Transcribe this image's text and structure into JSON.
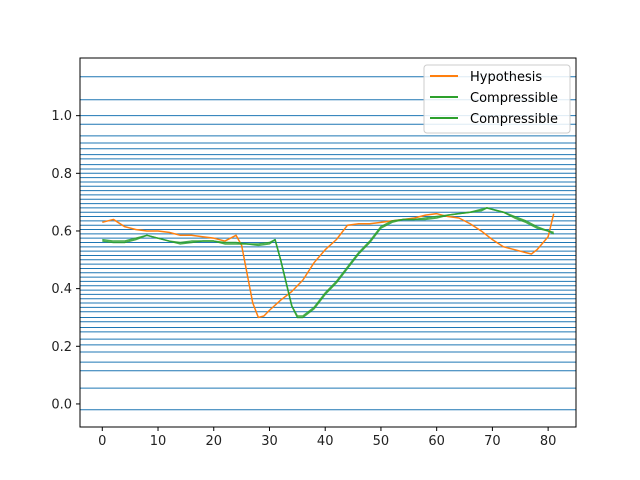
{
  "chart_data": {
    "type": "line",
    "xlim": [
      -4,
      85
    ],
    "ylim": [
      -0.08,
      1.2
    ],
    "x_ticks": [
      0,
      10,
      20,
      30,
      40,
      50,
      60,
      70,
      80
    ],
    "y_ticks": [
      0.0,
      0.2,
      0.4,
      0.6,
      0.8,
      1.0
    ],
    "x_tick_labels": [
      "0",
      "10",
      "20",
      "30",
      "40",
      "50",
      "60",
      "70",
      "80"
    ],
    "y_tick_labels": [
      "0.0",
      "0.2",
      "0.4",
      "0.6",
      "0.8",
      "1.0"
    ],
    "legend_position": "top-right",
    "hlines": {
      "color": "#1f77b4",
      "values": [
        -0.02,
        0.055,
        0.115,
        0.145,
        0.18,
        0.205,
        0.225,
        0.25,
        0.265,
        0.285,
        0.3,
        0.32,
        0.335,
        0.35,
        0.365,
        0.38,
        0.395,
        0.41,
        0.425,
        0.44,
        0.455,
        0.47,
        0.485,
        0.5,
        0.515,
        0.53,
        0.545,
        0.56,
        0.575,
        0.59,
        0.605,
        0.62,
        0.635,
        0.65,
        0.665,
        0.68,
        0.695,
        0.71,
        0.725,
        0.74,
        0.755,
        0.77,
        0.785,
        0.8,
        0.815,
        0.83,
        0.85,
        0.865,
        0.885,
        0.905,
        0.93,
        0.97,
        1.0,
        1.055,
        1.135
      ]
    },
    "series": [
      {
        "name": "Hypothesis",
        "color": "#ff7f0e",
        "x": [
          0,
          2,
          4,
          6,
          8,
          10,
          12,
          14,
          16,
          18,
          20,
          22,
          24,
          25,
          26,
          27,
          28,
          29,
          30,
          32,
          34,
          36,
          38,
          40,
          42,
          44,
          46,
          48,
          50,
          52,
          54,
          56,
          58,
          60,
          62,
          64,
          66,
          68,
          70,
          72,
          74,
          76,
          77,
          78,
          80,
          81
        ],
        "y": [
          0.63,
          0.64,
          0.615,
          0.605,
          0.6,
          0.6,
          0.595,
          0.585,
          0.585,
          0.58,
          0.575,
          0.565,
          0.585,
          0.55,
          0.45,
          0.35,
          0.3,
          0.305,
          0.325,
          0.36,
          0.39,
          0.43,
          0.49,
          0.535,
          0.57,
          0.62,
          0.625,
          0.625,
          0.63,
          0.635,
          0.64,
          0.645,
          0.655,
          0.66,
          0.65,
          0.645,
          0.625,
          0.6,
          0.57,
          0.545,
          0.535,
          0.525,
          0.52,
          0.535,
          0.58,
          0.66
        ]
      },
      {
        "name": "Compressible",
        "color": "#2ca02c",
        "x": [
          0,
          2,
          4,
          6,
          8,
          10,
          12,
          14,
          16,
          18,
          20,
          22,
          24,
          26,
          28,
          30,
          31,
          32,
          33,
          34,
          35,
          36,
          38,
          40,
          42,
          44,
          46,
          48,
          50,
          52,
          54,
          56,
          58,
          60,
          62,
          64,
          66,
          68,
          69,
          70,
          72,
          74,
          76,
          78,
          80,
          81
        ],
        "y": [
          0.565,
          0.56,
          0.56,
          0.57,
          0.585,
          0.575,
          0.565,
          0.555,
          0.56,
          0.565,
          0.565,
          0.555,
          0.555,
          0.555,
          0.55,
          0.555,
          0.57,
          0.5,
          0.42,
          0.34,
          0.3,
          0.3,
          0.33,
          0.38,
          0.42,
          0.47,
          0.52,
          0.56,
          0.61,
          0.63,
          0.64,
          0.64,
          0.64,
          0.645,
          0.655,
          0.66,
          0.665,
          0.67,
          0.68,
          0.675,
          0.665,
          0.65,
          0.635,
          0.615,
          0.6,
          0.595
        ]
      },
      {
        "name": "Compressible",
        "color": "#2ca02c",
        "x": [
          0,
          2,
          4,
          6,
          8,
          10,
          12,
          14,
          16,
          18,
          20,
          22,
          24,
          26,
          28,
          30,
          31,
          32,
          33,
          34,
          35,
          36,
          38,
          40,
          42,
          44,
          46,
          48,
          50,
          52,
          54,
          56,
          58,
          60,
          62,
          64,
          66,
          68,
          69,
          70,
          72,
          74,
          76,
          78,
          80,
          81
        ],
        "y": [
          0.57,
          0.565,
          0.565,
          0.575,
          0.585,
          0.575,
          0.565,
          0.56,
          0.565,
          0.565,
          0.565,
          0.56,
          0.56,
          0.555,
          0.555,
          0.56,
          0.57,
          0.5,
          0.42,
          0.34,
          0.305,
          0.305,
          0.335,
          0.385,
          0.425,
          0.475,
          0.525,
          0.565,
          0.615,
          0.635,
          0.64,
          0.64,
          0.645,
          0.65,
          0.655,
          0.66,
          0.665,
          0.675,
          0.68,
          0.675,
          0.665,
          0.645,
          0.63,
          0.61,
          0.6,
          0.59
        ]
      }
    ]
  }
}
